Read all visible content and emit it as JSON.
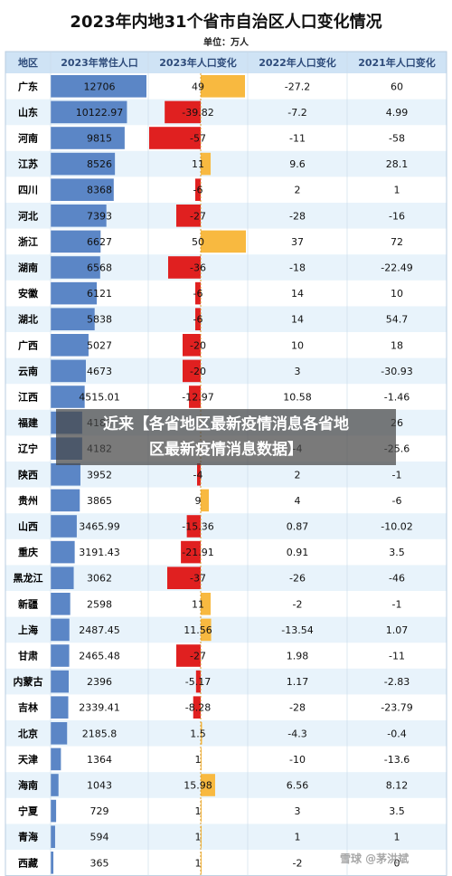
{
  "chart_data": {
    "type": "table",
    "title": "2023年内地31个省市自治区人口变化情况",
    "subtitle": "单位：万人",
    "columns": [
      "地区",
      "2023年常住人口",
      "2023年人口变化",
      "2022年人口变化",
      "2021年人口变化"
    ],
    "provinces": [
      "广东",
      "山东",
      "河南",
      "江苏",
      "四川",
      "河北",
      "浙江",
      "湖南",
      "安徽",
      "湖北",
      "广西",
      "云南",
      "江西",
      "福建",
      "辽宁",
      "陕西",
      "贵州",
      "山西",
      "重庆",
      "黑龙江",
      "新疆",
      "上海",
      "甘肃",
      "内蒙古",
      "吉林",
      "北京",
      "天津",
      "海南",
      "宁夏",
      "青海",
      "西藏"
    ],
    "population_2023": [
      "12706",
      "10122.97",
      "9815",
      "8526",
      "8368",
      "7393",
      "6627",
      "6568",
      "6121",
      "5838",
      "5027",
      "4673",
      "4515.01",
      "4183",
      "4182",
      "3952",
      "3865",
      "3465.99",
      "3191.43",
      "3062",
      "2598",
      "2487.45",
      "2465.48",
      "2396",
      "2339.41",
      "2185.8",
      "1364",
      "1043",
      "729",
      "594",
      "365"
    ],
    "change_2023": [
      "49",
      "-39.82",
      "-57",
      "11",
      "-6",
      "-27",
      "50",
      "-36",
      "-6",
      "-6",
      "-20",
      "-20",
      "-12.97",
      "",
      "",
      "-4",
      "9",
      "-15.36",
      "-21.91",
      "-37",
      "11",
      "11.56",
      "-27",
      "-5.17",
      "-8.28",
      "1.5",
      "1",
      "15.98",
      "1",
      "1",
      "1"
    ],
    "change_2022": [
      "-27.2",
      "-7.2",
      "-11",
      "9.6",
      "2",
      "-28",
      "37",
      "-18",
      "14",
      "14",
      "10",
      "3",
      "10.58",
      "",
      "-4",
      "2",
      "4",
      "0.87",
      "0.91",
      "-26",
      "-2",
      "-13.54",
      "1.98",
      "1.17",
      "-28",
      "-4.3",
      "-10",
      "6.56",
      "3",
      "1",
      "-2"
    ],
    "change_2021": [
      "60",
      "4.99",
      "-58",
      "28.1",
      "1",
      "-16",
      "72",
      "-22.49",
      "10",
      "54.7",
      "18",
      "-30.93",
      "-1.46",
      "26",
      "-25.6",
      "-1",
      "-6",
      "-10.02",
      "3.5",
      "-46",
      "-1",
      "1.07",
      "-11",
      "-2.83",
      "-23.79",
      "-0.4",
      "-13.6",
      "8.12",
      "3.5",
      "1",
      "0"
    ],
    "colors": {
      "population_bar": "#5b86c6",
      "increase_bar": "#f8b940",
      "decrease_bar": "#e02020",
      "header_bg": "#cfe3f5",
      "row_alt_bg": "#e8f3fb"
    }
  },
  "overlay": {
    "line1": "近来【各省地区最新疫情消息各省地",
    "line2": "区最新疫情消息数据】"
  },
  "watermark": "雪球 @茅洪斌"
}
